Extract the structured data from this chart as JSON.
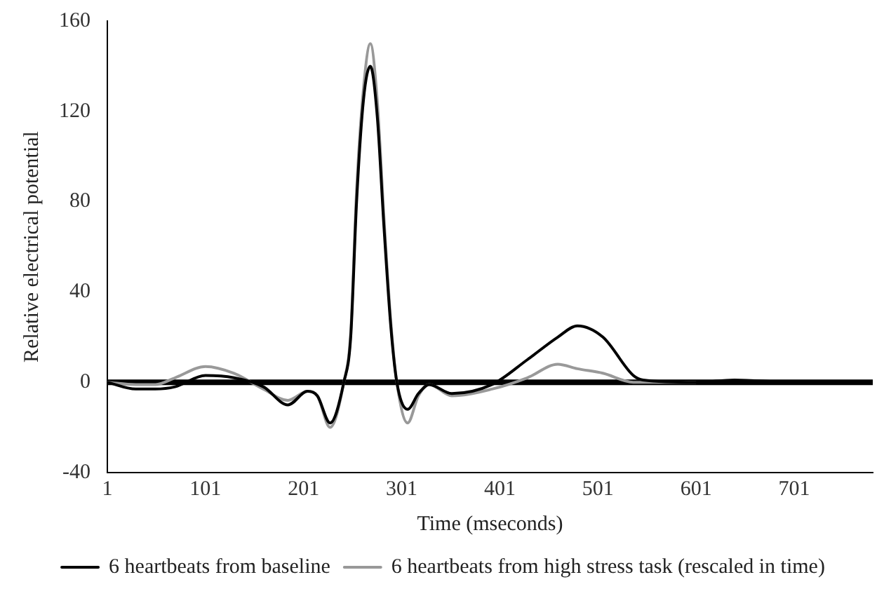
{
  "chart_data": {
    "type": "line",
    "xlabel": "Time (mseconds)",
    "ylabel": "Relative electrical potential",
    "xlim": [
      1,
      781
    ],
    "xticks": [
      1,
      101,
      201,
      301,
      401,
      501,
      601,
      701
    ],
    "ylim": [
      -40,
      160
    ],
    "yticks": [
      -40,
      0,
      40,
      80,
      120,
      160
    ],
    "grid": false,
    "legend": "bottom",
    "marker": "none",
    "line_style": "solid",
    "ref_lines": [
      {
        "axis": "y",
        "value": 0,
        "color": "#000000"
      }
    ],
    "series": [
      {
        "name": "6 heartbeats from baseline",
        "color": "#000000",
        "x": [
          1,
          30,
          50,
          70,
          101,
          130,
          160,
          185,
          205,
          215,
          228,
          242,
          249,
          255,
          262,
          269,
          276,
          283,
          290,
          296,
          307,
          318,
          329,
          352,
          393,
          429,
          460,
          480,
          506,
          537,
          547,
          601,
          640,
          700,
          781
        ],
        "values": [
          0,
          -3,
          -3,
          -2,
          3,
          2,
          -2,
          -10,
          -4,
          -6,
          -18,
          0,
          20,
          80,
          125,
          140,
          118,
          68,
          24,
          0,
          -12,
          -5,
          -1,
          -5,
          -1,
          10,
          20,
          25,
          20,
          3,
          1,
          0,
          1,
          0,
          0
        ]
      },
      {
        "name": "6 heartbeats from high stress task (rescaled in time)",
        "color": "#999999",
        "x": [
          1,
          30,
          50,
          70,
          101,
          130,
          160,
          185,
          205,
          215,
          228,
          242,
          249,
          255,
          262,
          269,
          276,
          283,
          290,
          296,
          307,
          318,
          329,
          352,
          393,
          429,
          460,
          480,
          506,
          537,
          547,
          601
        ],
        "values": [
          0,
          -1,
          -1,
          2,
          7,
          4,
          -3,
          -8,
          -4,
          -6,
          -20,
          0,
          22,
          85,
          130,
          150,
          125,
          72,
          26,
          0,
          -18,
          -6,
          -1,
          -6,
          -3,
          2,
          8,
          6,
          4,
          0,
          0,
          0
        ]
      }
    ]
  }
}
